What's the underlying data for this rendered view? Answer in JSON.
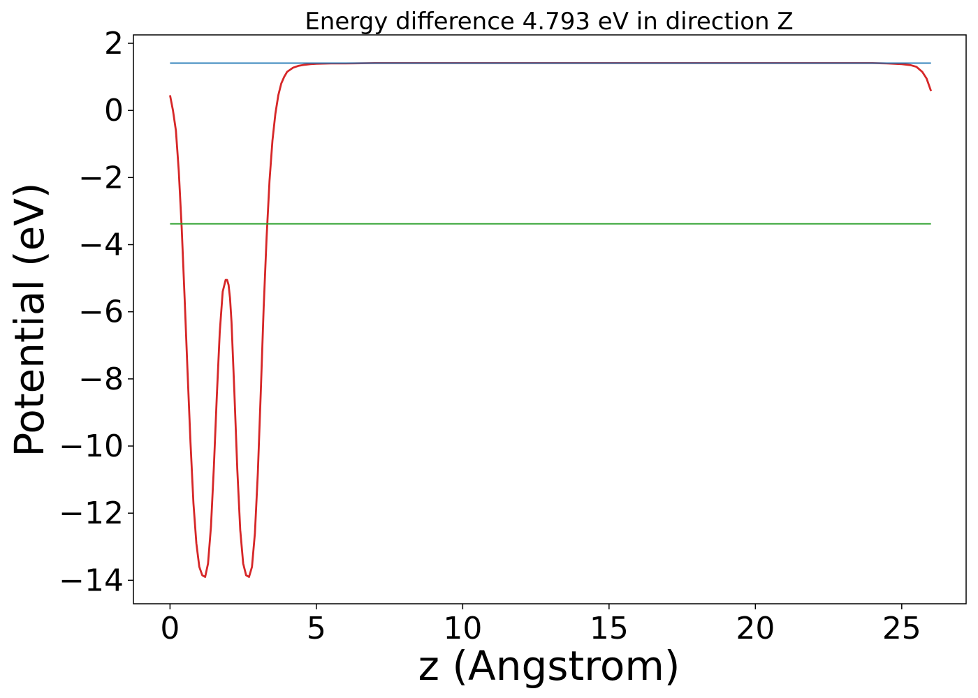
{
  "chart_data": {
    "type": "line",
    "title": "Energy difference 4.793 eV in direction Z",
    "xlabel": "z (Angstrom)",
    "ylabel": "Potential (eV)",
    "xlim": [
      -1.25,
      27.2
    ],
    "ylim": [
      -14.7,
      2.25
    ],
    "xticks": [
      0,
      5,
      10,
      15,
      20,
      25
    ],
    "xtick_labels": [
      "0",
      "5",
      "10",
      "15",
      "20",
      "25"
    ],
    "yticks": [
      2,
      0,
      -2,
      -4,
      -6,
      -8,
      -10,
      -12,
      -14
    ],
    "ytick_labels": [
      "2",
      "0",
      "−2",
      "−4",
      "−6",
      "−8",
      "−10",
      "−12",
      "−14"
    ],
    "grid": false,
    "series": [
      {
        "color": "#d62728",
        "x": [
          0,
          0.1,
          0.2,
          0.3,
          0.4,
          0.5,
          0.6,
          0.7,
          0.8,
          0.9,
          1.0,
          1.1,
          1.2,
          1.3,
          1.4,
          1.5,
          1.6,
          1.7,
          1.8,
          1.9,
          1.95,
          2.0,
          2.05,
          2.1,
          2.2,
          2.3,
          2.4,
          2.5,
          2.6,
          2.7,
          2.8,
          2.9,
          3.0,
          3.1,
          3.2,
          3.3,
          3.4,
          3.5,
          3.6,
          3.7,
          3.8,
          3.9,
          4.0,
          4.2,
          4.4,
          4.6,
          4.8,
          5.0,
          5.5,
          6.0,
          7.0,
          10.0,
          15.0,
          20.0,
          24.0,
          24.5,
          25.0,
          25.3,
          25.5,
          25.7,
          25.85,
          26.0
        ],
        "y": [
          0.45,
          0.0,
          -0.6,
          -1.8,
          -3.5,
          -5.6,
          -7.8,
          -9.9,
          -11.7,
          -12.9,
          -13.6,
          -13.85,
          -13.9,
          -13.5,
          -12.4,
          -10.6,
          -8.5,
          -6.6,
          -5.4,
          -5.05,
          -5.05,
          -5.2,
          -5.6,
          -6.3,
          -8.4,
          -10.7,
          -12.5,
          -13.5,
          -13.85,
          -13.9,
          -13.6,
          -12.6,
          -10.8,
          -8.4,
          -5.9,
          -3.8,
          -2.1,
          -0.9,
          -0.1,
          0.45,
          0.8,
          1.0,
          1.15,
          1.27,
          1.33,
          1.36,
          1.38,
          1.39,
          1.4,
          1.4,
          1.41,
          1.41,
          1.41,
          1.41,
          1.41,
          1.4,
          1.38,
          1.35,
          1.3,
          1.15,
          0.95,
          0.58
        ]
      },
      {
        "color": "#1f77b4",
        "x": [
          0,
          26.0
        ],
        "y": [
          1.41,
          1.41
        ]
      },
      {
        "color": "#2ca02c",
        "x": [
          0,
          26.0
        ],
        "y": [
          -3.38,
          -3.38
        ]
      }
    ]
  }
}
